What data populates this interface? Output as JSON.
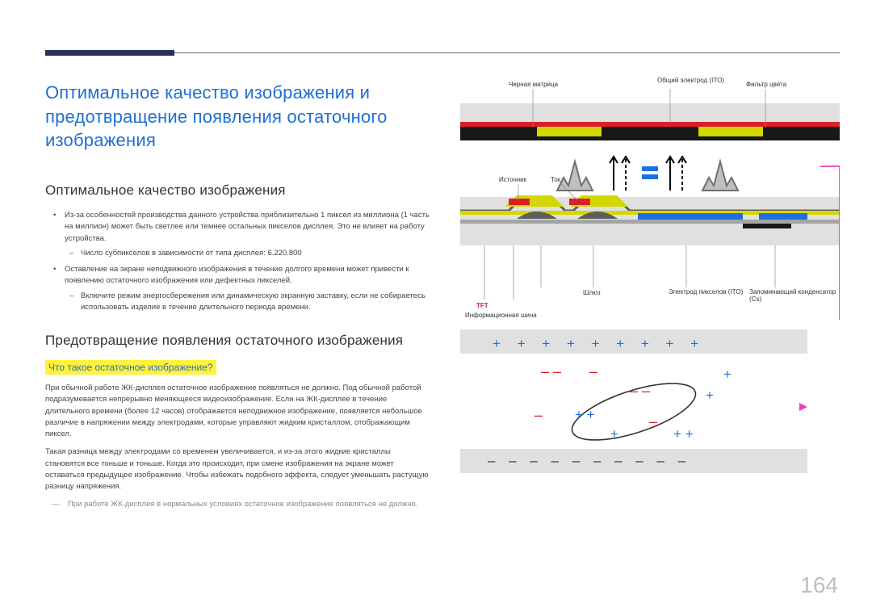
{
  "colors": {
    "title": "#1f6fd6",
    "highlight_bg": "#fff23a",
    "highlight_text": "#276fcc",
    "page_num": "#bfbfbf",
    "diagram_bg": "#e0e0e0",
    "diagram_black": "#181818",
    "diagram_red": "#dc1f26",
    "diagram_yellow": "#d3d800",
    "diagram_blue": "#1f70dd",
    "diagram_gray": "#a5a5a5",
    "diagram_darkgray": "#5e5e5e",
    "magenta": "#e83fb8",
    "white": "#ffffff"
  },
  "page_number": "164",
  "title": "Оптимальное качество изображения и предотвращение появления остаточного изображения",
  "section1": {
    "heading": "Оптимальное качество изображения",
    "bullets": [
      {
        "text": "Из-за особенностей производства данного устройства приблизительно 1 пиксел из миллиона (1 часть на миллион) может быть светлее или темнее остальных пикселов дисплея. Это не влияет на работу устройства.",
        "sub": [
          "Число субпикселов в зависимости от типа дисплея: 6.220.800"
        ]
      },
      {
        "text": "Оставление на экране неподвижного изображения в течение долгого времени может привести к появлению остаточного изображения или дефектных пикселей.",
        "sub": [
          "Включите режим энергосбережения или динамическую экранную заставку, если не собираетесь использовать изделие в течение длительного периода времени."
        ]
      }
    ]
  },
  "section2": {
    "heading": "Предотвращение появления остаточного изображения",
    "subheading": "Что такое остаточное изображение?",
    "paragraphs": [
      "При обычной работе ЖК-дисплея остаточное изображение появляться не должно. Под обычной работой подразумевается непрерывно меняющееся видеоизображение. Если на ЖК-дисплее в течение длительного времени (более 12 часов) отображается неподвижное изображение, появляется небольшое различие в напряжении между электродами, которые управляют жидким кристаллом, отображающим пиксел.",
      "Такая разница между электродами со временем увеличивается, и из-за этого жидкие кристаллы становятся все тоньше и тоньше. Когда это происходит, при смене изображения на экране может оставаться предыдущее изображение. Чтобы избежать подобного эффекта, следует уменьшать растущую разницу напряжения."
    ],
    "note": "При работе ЖК-дисплея в нормальных условиях остаточное изображение появляться не должно."
  },
  "diagram_labels": {
    "black_matrix": "Черная матрица",
    "common_ito": "Общий электрод (ITO)",
    "color_filter": "Фильтр цвета",
    "source": "Источник",
    "drain": "Ток",
    "tft": "TFT",
    "gate": "Шлюз",
    "data_line": "Информационная шина",
    "pixel_ito": "Электрод пикселов (ITO)",
    "storage_cap": "Запоминающий конденсатор (Cs)"
  },
  "bottom_diagram": {
    "plus_row": "+  +  +  +  +  +  +  +  +",
    "minus_dash_row": "–  –  –  –  –  –  –  –  –  –"
  }
}
